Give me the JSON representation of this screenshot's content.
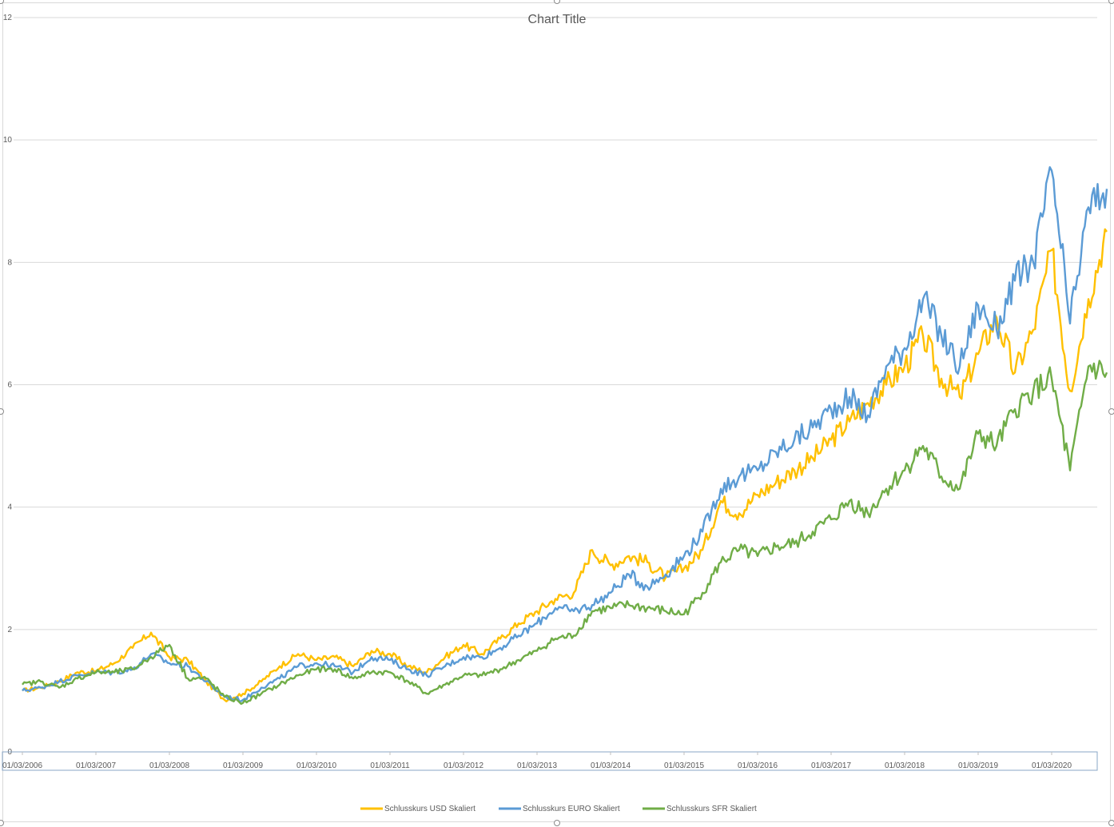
{
  "chart_data": {
    "type": "line",
    "title": "Chart Title",
    "xlabel": "",
    "ylabel": "",
    "ylim": [
      0,
      12
    ],
    "y_ticks": [
      "0",
      "2",
      "4",
      "6",
      "8",
      "10",
      "12"
    ],
    "x_tick_labels": [
      "01/03/2006",
      "01/03/2007",
      "01/03/2008",
      "01/03/2009",
      "01/03/2010",
      "01/03/2011",
      "01/03/2012",
      "01/03/2013",
      "01/03/2014",
      "01/03/2015",
      "01/03/2016",
      "01/03/2017",
      "01/03/2018",
      "01/03/2019",
      "01/03/2020"
    ],
    "grid": "horizontal",
    "legend_position": "bottom",
    "series": [
      {
        "name": "Schlusskurs USD Skaliert",
        "color": "#FFC000",
        "x": [
          "2006-03",
          "2006-06",
          "2006-09",
          "2006-12",
          "2007-03",
          "2007-06",
          "2007-09",
          "2007-12",
          "2008-03",
          "2008-06",
          "2008-09",
          "2008-12",
          "2009-03",
          "2009-06",
          "2009-09",
          "2009-12",
          "2010-03",
          "2010-06",
          "2010-09",
          "2010-12",
          "2011-03",
          "2011-06",
          "2011-09",
          "2011-12",
          "2012-03",
          "2012-06",
          "2012-09",
          "2012-12",
          "2013-03",
          "2013-06",
          "2013-09",
          "2013-12",
          "2014-03",
          "2014-06",
          "2014-09",
          "2014-12",
          "2015-03",
          "2015-06",
          "2015-09",
          "2015-12",
          "2016-03",
          "2016-06",
          "2016-09",
          "2016-12",
          "2017-03",
          "2017-06",
          "2017-09",
          "2017-12",
          "2018-03",
          "2018-06",
          "2018-09",
          "2018-12",
          "2019-03",
          "2019-06",
          "2019-09",
          "2019-12",
          "2020-03",
          "2020-06",
          "2020-09",
          "2020-12"
        ],
        "values": [
          1.0,
          1.05,
          1.15,
          1.3,
          1.32,
          1.45,
          1.7,
          1.95,
          1.55,
          1.5,
          1.15,
          0.85,
          0.95,
          1.15,
          1.4,
          1.6,
          1.5,
          1.55,
          1.4,
          1.65,
          1.6,
          1.4,
          1.3,
          1.55,
          1.75,
          1.6,
          1.85,
          2.1,
          2.3,
          2.5,
          2.6,
          3.3,
          3.05,
          3.2,
          3.1,
          2.85,
          3.0,
          3.3,
          4.1,
          3.9,
          4.2,
          4.4,
          4.6,
          4.8,
          5.1,
          5.4,
          5.7,
          6.0,
          6.3,
          6.8,
          6.1,
          5.8,
          6.5,
          7.1,
          6.2,
          6.9,
          8.2,
          5.9,
          7.4,
          8.5
        ]
      },
      {
        "name": "Schlusskurs EURO Skaliert",
        "color": "#5B9BD5",
        "x": [
          "2006-03",
          "2006-06",
          "2006-09",
          "2006-12",
          "2007-03",
          "2007-06",
          "2007-09",
          "2007-12",
          "2008-03",
          "2008-06",
          "2008-09",
          "2008-12",
          "2009-03",
          "2009-06",
          "2009-09",
          "2009-12",
          "2010-03",
          "2010-06",
          "2010-09",
          "2010-12",
          "2011-03",
          "2011-06",
          "2011-09",
          "2011-12",
          "2012-03",
          "2012-06",
          "2012-09",
          "2012-12",
          "2013-03",
          "2013-06",
          "2013-09",
          "2013-12",
          "2014-03",
          "2014-06",
          "2014-09",
          "2014-12",
          "2015-03",
          "2015-06",
          "2015-09",
          "2015-12",
          "2016-03",
          "2016-06",
          "2016-09",
          "2016-12",
          "2017-03",
          "2017-06",
          "2017-09",
          "2017-12",
          "2018-03",
          "2018-06",
          "2018-09",
          "2018-12",
          "2019-03",
          "2019-06",
          "2019-09",
          "2019-12",
          "2020-03",
          "2020-06",
          "2020-09",
          "2020-12"
        ],
        "values": [
          1.0,
          1.05,
          1.15,
          1.25,
          1.3,
          1.3,
          1.35,
          1.6,
          1.45,
          1.4,
          1.15,
          0.9,
          0.85,
          1.05,
          1.2,
          1.4,
          1.45,
          1.4,
          1.3,
          1.55,
          1.5,
          1.35,
          1.25,
          1.4,
          1.55,
          1.55,
          1.7,
          1.9,
          2.1,
          2.35,
          2.3,
          2.4,
          2.6,
          2.9,
          2.7,
          2.9,
          3.2,
          3.6,
          4.3,
          4.5,
          4.6,
          4.9,
          5.1,
          5.3,
          5.6,
          5.8,
          5.5,
          6.3,
          6.6,
          7.4,
          6.8,
          6.3,
          7.3,
          6.9,
          7.7,
          8.0,
          9.5,
          7.0,
          8.9,
          9.2
        ]
      },
      {
        "name": "Schlusskurs SFR Skaliert",
        "color": "#70AD47",
        "x": [
          "2006-03",
          "2006-06",
          "2006-09",
          "2006-12",
          "2007-03",
          "2007-06",
          "2007-09",
          "2007-12",
          "2008-03",
          "2008-06",
          "2008-09",
          "2008-12",
          "2009-03",
          "2009-06",
          "2009-09",
          "2009-12",
          "2010-03",
          "2010-06",
          "2010-09",
          "2010-12",
          "2011-03",
          "2011-06",
          "2011-09",
          "2011-12",
          "2012-03",
          "2012-06",
          "2012-09",
          "2012-12",
          "2013-03",
          "2013-06",
          "2013-09",
          "2013-12",
          "2014-03",
          "2014-06",
          "2014-09",
          "2014-12",
          "2015-03",
          "2015-06",
          "2015-09",
          "2015-12",
          "2016-03",
          "2016-06",
          "2016-09",
          "2016-12",
          "2017-03",
          "2017-06",
          "2017-09",
          "2017-12",
          "2018-03",
          "2018-06",
          "2018-09",
          "2018-12",
          "2019-03",
          "2019-06",
          "2019-09",
          "2019-12",
          "2020-03",
          "2020-06",
          "2020-09",
          "2020-12"
        ],
        "values": [
          1.1,
          1.15,
          1.05,
          1.2,
          1.3,
          1.3,
          1.35,
          1.55,
          1.75,
          1.2,
          1.2,
          0.9,
          0.8,
          0.95,
          1.1,
          1.25,
          1.35,
          1.35,
          1.2,
          1.3,
          1.3,
          1.15,
          0.95,
          1.1,
          1.25,
          1.25,
          1.35,
          1.5,
          1.65,
          1.85,
          1.9,
          2.3,
          2.35,
          2.4,
          2.35,
          2.3,
          2.25,
          2.6,
          3.1,
          3.3,
          3.2,
          3.35,
          3.4,
          3.6,
          3.8,
          4.1,
          3.9,
          4.3,
          4.6,
          5.0,
          4.5,
          4.3,
          5.2,
          5.0,
          5.6,
          5.9,
          6.1,
          4.6,
          6.3,
          6.2
        ]
      }
    ]
  }
}
